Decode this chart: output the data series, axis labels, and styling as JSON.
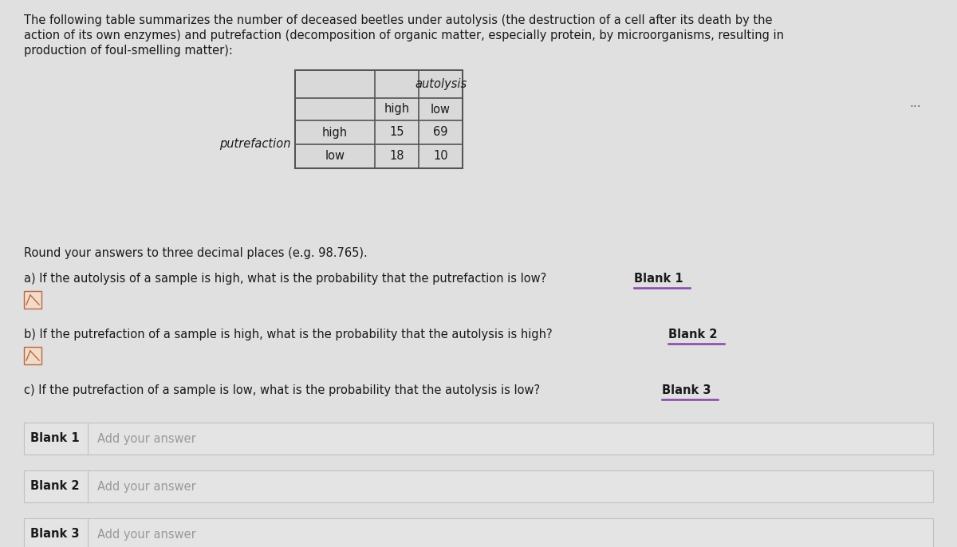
{
  "bg_color": "#cdcdcd",
  "content_bg": "#e0e0e0",
  "intro_text_line1": "The following table summarizes the number of deceased beetles under autolysis (the destruction of a cell after its death by the",
  "intro_text_line2": "action of its own enzymes) and putrefaction (decomposition of organic matter, especially protein, by microorganisms, resulting in",
  "intro_text_line3": "production of foul-smelling matter):",
  "table": {
    "autolysis_high_high": 15,
    "autolysis_low_high": 69,
    "autolysis_high_low": 18,
    "autolysis_low_low": 10
  },
  "round_note": "Round your answers to three decimal places (e.g. 98.765).",
  "question_a": "a) If the autolysis of a sample is high, what is the probability that the putrefaction is low? ",
  "blank_a": "Blank 1",
  "question_b": "b) If the putrefaction of a sample is high, what is the probability that the autolysis is high? ",
  "blank_b": "Blank 2",
  "question_c": "c) If the putrefaction of a sample is low, what is the probability that the autolysis is low? ",
  "blank_c": "Blank 3",
  "blank_labels": [
    "Blank 1",
    "Blank 2",
    "Blank 3"
  ],
  "blank_placeholder": "Add your answer",
  "dots": "...",
  "table_bg": "#d9d9d9",
  "box_bg": "#e8e8e8",
  "box_border": "#c8c8c8"
}
